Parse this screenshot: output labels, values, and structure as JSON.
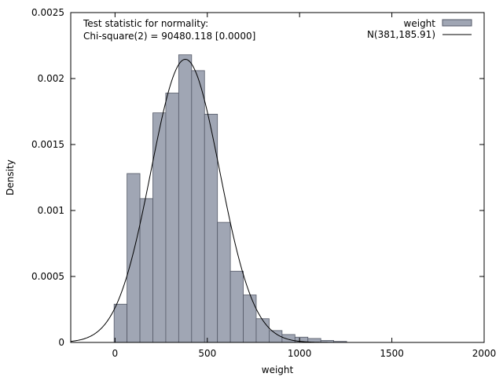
{
  "chart_data": {
    "type": "bar",
    "xlabel": "weight",
    "ylabel": "Density",
    "xlim": [
      -240,
      2000
    ],
    "ylim": [
      0,
      0.0025
    ],
    "xticks": [
      0,
      500,
      1000,
      1500,
      2000
    ],
    "yticks": [
      0,
      0.0005,
      0.001,
      0.0015,
      0.002,
      0.0025
    ],
    "ytick_labels": [
      "0",
      "0.0005",
      "0.001",
      "0.0015",
      "0.002",
      "0.0025"
    ],
    "grid": false,
    "legend_position": "top-right",
    "annotation": {
      "line1": "Test statistic for normality:",
      "line2": "Chi-square(2) = 90480.118 [0.0000]"
    },
    "histogram": {
      "name": "weight",
      "color": "#a0a6b4",
      "edge_color": "#555a68",
      "bin_width": 70,
      "first_bin_start": -5,
      "values": [
        0.00029,
        0.00128,
        0.00109,
        0.00174,
        0.00189,
        0.00218,
        0.00206,
        0.00173,
        0.00091,
        0.00054,
        0.00036,
        0.00018,
        9e-05,
        6e-05,
        4e-05,
        3e-05,
        1.5e-05,
        8e-06
      ]
    },
    "normal_curve": {
      "name": "N(381,185.91)",
      "mean": 381,
      "sd": 185.91,
      "color": "#000000"
    }
  }
}
